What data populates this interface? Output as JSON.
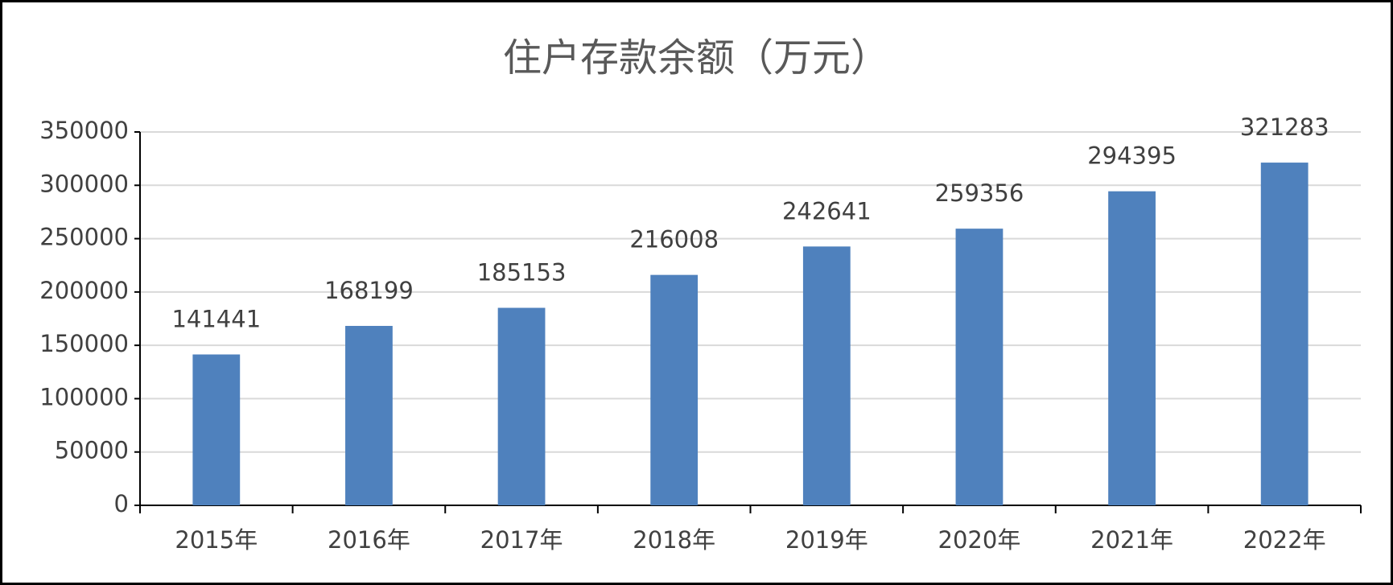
{
  "chart_data": {
    "type": "bar",
    "title": "住户存款余额（万元）",
    "categories": [
      "2015年",
      "2016年",
      "2017年",
      "2018年",
      "2019年",
      "2020年",
      "2021年",
      "2022年"
    ],
    "values": [
      141441,
      168199,
      185153,
      216008,
      242641,
      259356,
      294395,
      321283
    ],
    "color": "#4f81bd",
    "ylim": [
      0,
      350000
    ],
    "yticks": [
      0,
      50000,
      100000,
      150000,
      200000,
      250000,
      300000,
      350000
    ],
    "grid": true
  }
}
